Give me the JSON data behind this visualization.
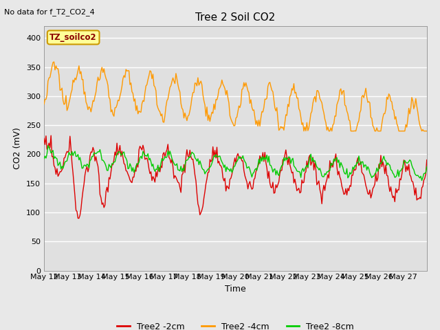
{
  "title": "Tree 2 Soil CO2",
  "subtitle": "No data for f_T2_CO2_4",
  "xlabel": "Time",
  "ylabel": "CO2 (mV)",
  "ylim": [
    0,
    420
  ],
  "yticks": [
    0,
    50,
    100,
    150,
    200,
    250,
    300,
    350,
    400
  ],
  "fig_bg": "#e8e8e8",
  "plot_bg": "#e0e0e0",
  "grid_color": "#ffffff",
  "annotation_text": "TZ_soilco2",
  "annotation_bg": "#ffff99",
  "annotation_border": "#cc9900",
  "x_tick_labels": [
    "May 12",
    "May 13",
    "May 14",
    "May 15",
    "May 16",
    "May 17",
    "May 18",
    "May 19",
    "May 20",
    "May 21",
    "May 22",
    "May 23",
    "May 24",
    "May 25",
    "May 26",
    "May 27"
  ],
  "line_colors": {
    "2cm": "#dd0000",
    "4cm": "#ff9900",
    "8cm": "#00cc00"
  },
  "legend_labels": [
    "Tree2 -2cm",
    "Tree2 -4cm",
    "Tree2 -8cm"
  ]
}
